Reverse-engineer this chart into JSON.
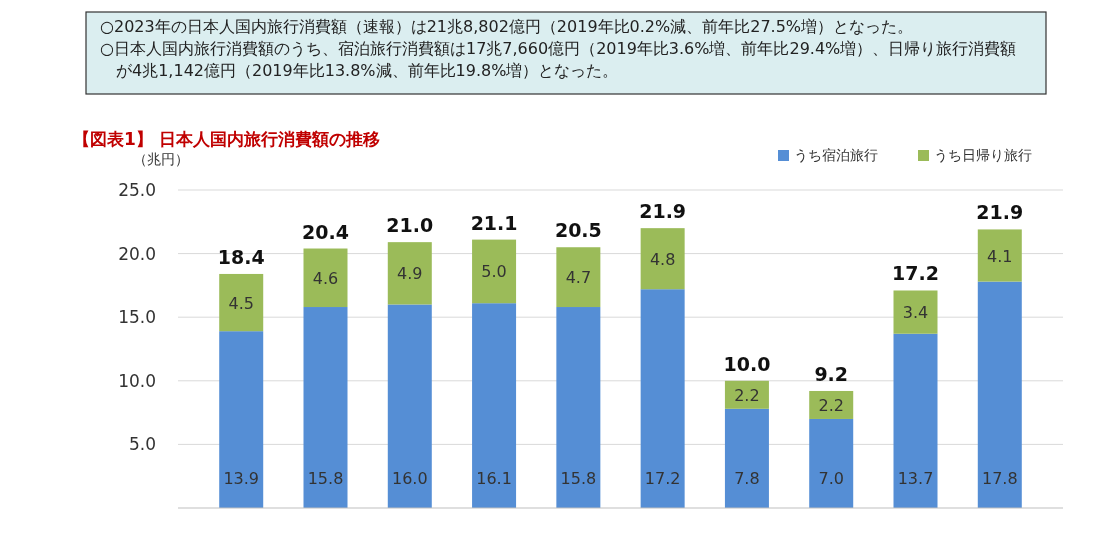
{
  "chart_data": {
    "type": "bar",
    "title": "【図表1】 日本人国内旅行消費額の推移",
    "ylabel": "（兆円）",
    "annotations": [
      "○2023年の日本人国内旅行消費額（速報）は21兆8,802億円（2019年比0.2%減、前年比27.5%増）となった。",
      "○日本人国内旅行消費額のうち、宿泊旅行消費額は17兆7,660億円（2019年比3.6%増、前年比29.4%増）、日帰り旅行消費額が4兆1,142億円（2019年比13.8%減、前年比19.8%増）となった。"
    ],
    "categories": [
      null,
      null,
      null,
      null,
      null,
      null,
      null,
      null,
      null,
      null
    ],
    "stacked": true,
    "series": [
      {
        "name": "うち宿泊旅行",
        "color": "#558ed5",
        "values": [
          13.9,
          15.8,
          16.0,
          16.1,
          15.8,
          17.2,
          7.8,
          7.0,
          13.7,
          17.8
        ],
        "value_labels": [
          "13.9",
          "15.8",
          "16.0",
          "16.1",
          "15.8",
          "17.2",
          "7.8",
          "7.0",
          "13.7",
          "17.8"
        ]
      },
      {
        "name": "うち日帰り旅行",
        "color": "#9bbb59",
        "values": [
          4.5,
          4.6,
          4.9,
          5.0,
          4.7,
          4.8,
          2.2,
          2.2,
          3.4,
          4.1
        ],
        "value_labels": [
          "4.5",
          "4.6",
          "4.9",
          "5.0",
          "4.7",
          "4.8",
          "2.2",
          "2.2",
          "3.4",
          "4.1"
        ]
      }
    ],
    "totals": [
      "18.4",
      "20.4",
      "21.0",
      "21.1",
      "20.5",
      "21.9",
      "10.0",
      "9.2",
      "17.2",
      "21.9"
    ],
    "ylim": [
      0,
      25
    ],
    "yticks": [
      {
        "value": 5,
        "label": "5.0"
      },
      {
        "value": 10,
        "label": "10.0"
      },
      {
        "value": 15,
        "label": "15.0"
      },
      {
        "value": 20,
        "label": "20.0"
      },
      {
        "value": 25,
        "label": "25.0"
      }
    ],
    "grid": "y",
    "legend": "top right"
  }
}
